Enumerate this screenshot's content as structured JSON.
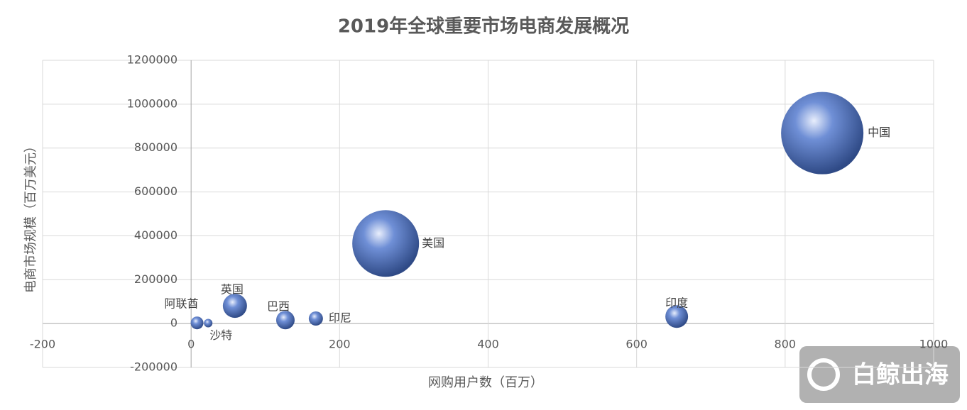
{
  "chart_data": {
    "type": "bubble",
    "title": "2019年全球重要市场电商发展概况",
    "x_label": "网购用户数（百万）",
    "y_label": "电商市场规模（百万美元）",
    "categories": [
      "中国",
      "美国",
      "印度",
      "英国",
      "巴西",
      "印尼",
      "阿联酋",
      "沙特"
    ],
    "x": [
      850,
      262,
      654,
      59,
      127,
      168,
      8,
      23
    ],
    "values": [
      868000,
      365000,
      32000,
      81000,
      16000,
      23000,
      3000,
      2000
    ],
    "sizes": [
      3364,
      2209,
      256,
      289,
      169,
      100,
      81,
      36
    ],
    "color": "#6f8fd6",
    "xlim": [
      -200,
      1000
    ],
    "xticks": [
      -200,
      0,
      200,
      400,
      600,
      800,
      1000
    ],
    "ylim": [
      -200000,
      1200000
    ],
    "yticks": [
      -200000,
      0,
      200000,
      400000,
      600000,
      800000,
      1000000,
      1200000
    ],
    "grid": true,
    "watermark": "白鲸出海"
  }
}
